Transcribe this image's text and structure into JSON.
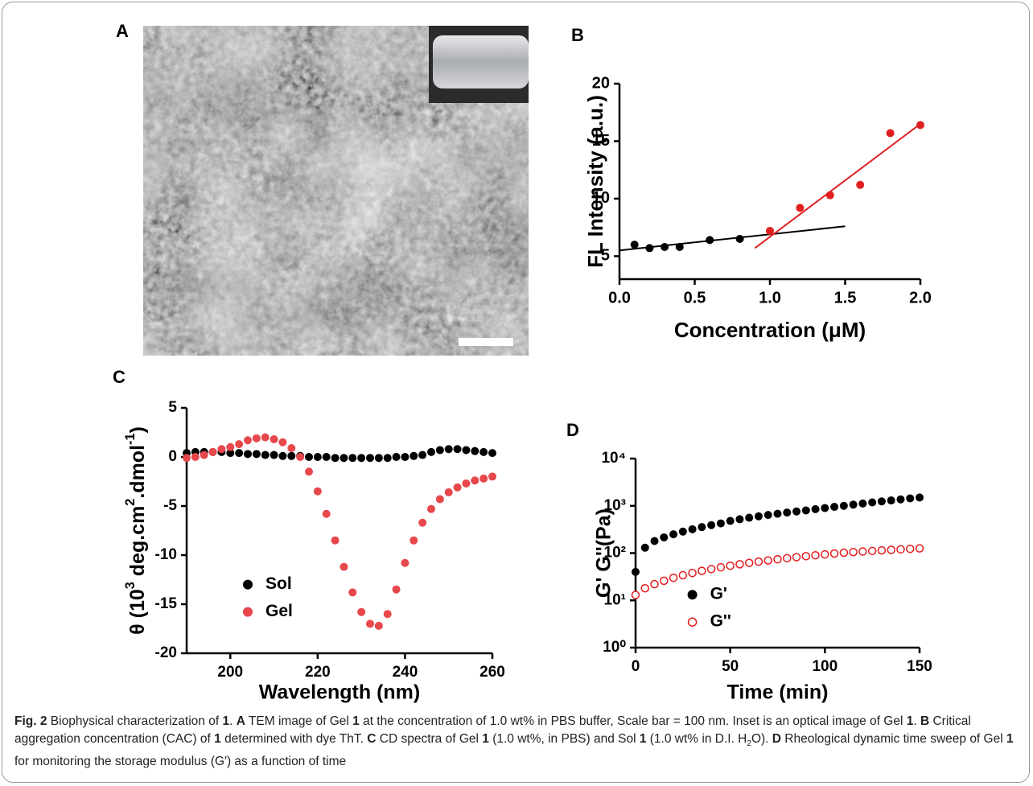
{
  "panels": [
    "A",
    "B",
    "C",
    "D"
  ],
  "chart_data": [
    {
      "type": "scatter",
      "xlabel": "Concentration (μM)",
      "ylabel": "FL Intensity (a.u.)",
      "xlim": [
        0,
        2
      ],
      "ylim": [
        3,
        20
      ],
      "xticks": [
        {
          "value": 0,
          "label": "0.0"
        },
        0.5,
        {
          "value": 1,
          "label": "1.0"
        },
        1.5,
        {
          "value": 2,
          "label": "2.0"
        }
      ],
      "yticks": [
        5,
        10,
        15,
        20
      ],
      "series": [
        {
          "color": "#000000",
          "marker": "filled",
          "x": [
            0.1,
            0.2,
            0.3,
            0.4,
            0.6,
            0.8
          ],
          "values": [
            6.0,
            5.7,
            5.8,
            5.8,
            6.4,
            6.5
          ]
        },
        {
          "color": "#e02020",
          "marker": "filled",
          "x": [
            1.0,
            1.2,
            1.4,
            1.6,
            1.8,
            2.0
          ],
          "values": [
            7.2,
            9.2,
            10.3,
            11.2,
            15.7,
            16.4
          ]
        }
      ],
      "fits": [
        {
          "color": "#000000",
          "x": [
            0,
            1.5
          ],
          "values": [
            5.5,
            7.6
          ]
        },
        {
          "color": "#e02020",
          "x": [
            0.9,
            2.0
          ],
          "values": [
            5.7,
            16.5
          ]
        }
      ]
    },
    {
      "type": "scatter",
      "xlabel": "Wavelength (nm)",
      "ylabel": [
        {
          "text": "θ (10"
        },
        {
          "text": "3",
          "sup": true
        },
        {
          "text": " deg.cm"
        },
        {
          "text": "2",
          "sup": true
        },
        {
          "text": ".dmol"
        },
        {
          "text": "-1",
          "sup": true
        },
        {
          "text": ")"
        }
      ],
      "xlim": [
        190,
        260
      ],
      "ylim": [
        -20,
        5
      ],
      "xticks": [
        200,
        220,
        240,
        260
      ],
      "yticks": [
        5,
        0,
        -5,
        -10,
        -15,
        -20
      ],
      "legend": "lower left",
      "x": [
        190,
        192,
        194,
        196,
        198,
        200,
        202,
        204,
        206,
        208,
        210,
        212,
        214,
        216,
        218,
        220,
        222,
        224,
        226,
        228,
        230,
        232,
        234,
        236,
        238,
        240,
        242,
        244,
        246,
        248,
        250,
        252,
        254,
        256,
        258,
        260
      ],
      "series": [
        {
          "name": "Sol",
          "color": "#000000",
          "marker": "filled",
          "values": [
            0.4,
            0.5,
            0.5,
            0.5,
            0.5,
            0.4,
            0.4,
            0.3,
            0.3,
            0.2,
            0.2,
            0.1,
            0.1,
            0.1,
            0.0,
            0.0,
            0.0,
            -0.1,
            -0.1,
            -0.1,
            -0.1,
            -0.1,
            -0.1,
            -0.1,
            0.0,
            0.0,
            0.1,
            0.2,
            0.5,
            0.7,
            0.8,
            0.8,
            0.7,
            0.6,
            0.5,
            0.4
          ]
        },
        {
          "name": "Gel",
          "color": "#e8474b",
          "marker": "filled",
          "values": [
            -0.1,
            0.0,
            0.2,
            0.5,
            0.8,
            1.0,
            1.3,
            1.7,
            1.9,
            2.0,
            1.8,
            1.5,
            0.9,
            0.0,
            -1.5,
            -3.5,
            -5.8,
            -8.5,
            -11.2,
            -13.8,
            -15.8,
            -17.0,
            -17.2,
            -16.0,
            -13.5,
            -10.8,
            -8.5,
            -6.7,
            -5.3,
            -4.3,
            -3.6,
            -3.1,
            -2.7,
            -2.4,
            -2.2,
            -2.0
          ]
        }
      ]
    },
    {
      "type": "scatter",
      "xlabel": "Time (min)",
      "ylabel": "G' G''(Pa)",
      "log_y": true,
      "xlim": [
        0,
        150
      ],
      "ylim": [
        1,
        10000
      ],
      "xticks": [
        0,
        50,
        100,
        150
      ],
      "yticks": [
        {
          "value": 1,
          "label": "10⁰"
        },
        {
          "value": 10,
          "label": "10¹"
        },
        {
          "value": 100,
          "label": "10²"
        },
        {
          "value": 1000,
          "label": "10³"
        },
        {
          "value": 10000,
          "label": "10⁴"
        }
      ],
      "legend": "lower left",
      "x": [
        0,
        5,
        10,
        15,
        20,
        25,
        30,
        35,
        40,
        45,
        50,
        55,
        60,
        65,
        70,
        75,
        80,
        85,
        90,
        95,
        100,
        105,
        110,
        115,
        120,
        125,
        130,
        135,
        140,
        145,
        150
      ],
      "series": [
        {
          "name": "G'",
          "color": "#000000",
          "marker": "filled",
          "values": [
            40,
            130,
            180,
            215,
            250,
            285,
            320,
            355,
            390,
            425,
            480,
            520,
            560,
            600,
            640,
            680,
            720,
            760,
            800,
            850,
            900,
            950,
            1000,
            1060,
            1120,
            1180,
            1240,
            1300,
            1370,
            1440,
            1500
          ]
        },
        {
          "name": "G''",
          "color": "#e41a1c",
          "marker": "open",
          "values": [
            13,
            18,
            22,
            26,
            30,
            34,
            38,
            42,
            46,
            50,
            54,
            58,
            62,
            66,
            70,
            74,
            78,
            82,
            86,
            90,
            94,
            98,
            102,
            105,
            108,
            111,
            114,
            117,
            120,
            123,
            126
          ]
        }
      ]
    }
  ],
  "caption": [
    {
      "text": "Fig. 2",
      "bold": true
    },
    {
      "text": " Biophysical characterization of "
    },
    {
      "text": "1",
      "bold": true
    },
    {
      "text": ". "
    },
    {
      "text": "A",
      "bold": true
    },
    {
      "text": " TEM image of Gel "
    },
    {
      "text": "1",
      "bold": true
    },
    {
      "text": " at the concentration of 1.0 wt% in PBS buffer, Scale bar = 100 nm. Inset is an optical image of Gel "
    },
    {
      "text": "1",
      "bold": true
    },
    {
      "text": ". "
    },
    {
      "text": "B",
      "bold": true
    },
    {
      "text": " Critical aggregation concentration (CAC) of "
    },
    {
      "text": "1",
      "bold": true
    },
    {
      "text": " determined with dye ThT. "
    },
    {
      "text": "C",
      "bold": true
    },
    {
      "text": " CD spectra of Gel "
    },
    {
      "text": "1",
      "bold": true
    },
    {
      "text": " (1.0 wt%, in PBS) and Sol "
    },
    {
      "text": "1",
      "bold": true
    },
    {
      "text": " (1.0 wt% in D.I. H"
    },
    {
      "text": "2",
      "sub": true
    },
    {
      "text": "O). "
    },
    {
      "text": "D",
      "bold": true
    },
    {
      "text": " Rheological dynamic time sweep of Gel "
    },
    {
      "text": "1",
      "bold": true
    },
    {
      "text": " for monitoring the storage modulus (G′) as a function of time"
    }
  ]
}
